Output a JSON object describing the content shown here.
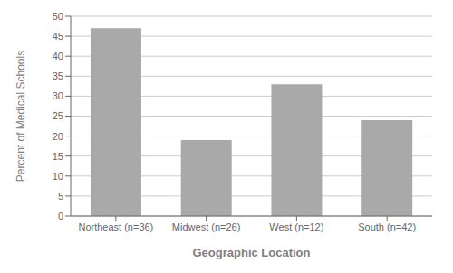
{
  "chart_data": {
    "type": "bar",
    "categories": [
      "Northeast (n=36)",
      "Midwest (n=26)",
      "West (n=12)",
      "South (n=42)"
    ],
    "values": [
      47,
      19,
      33,
      24
    ],
    "color": "#a9a9a9",
    "xlabel": "Geographic Location",
    "ylabel": "Percent of Medical Schools",
    "ylim": [
      0,
      50
    ],
    "yticks": [
      0,
      5,
      10,
      15,
      20,
      25,
      30,
      35,
      40,
      45,
      50
    ],
    "grid": true
  }
}
